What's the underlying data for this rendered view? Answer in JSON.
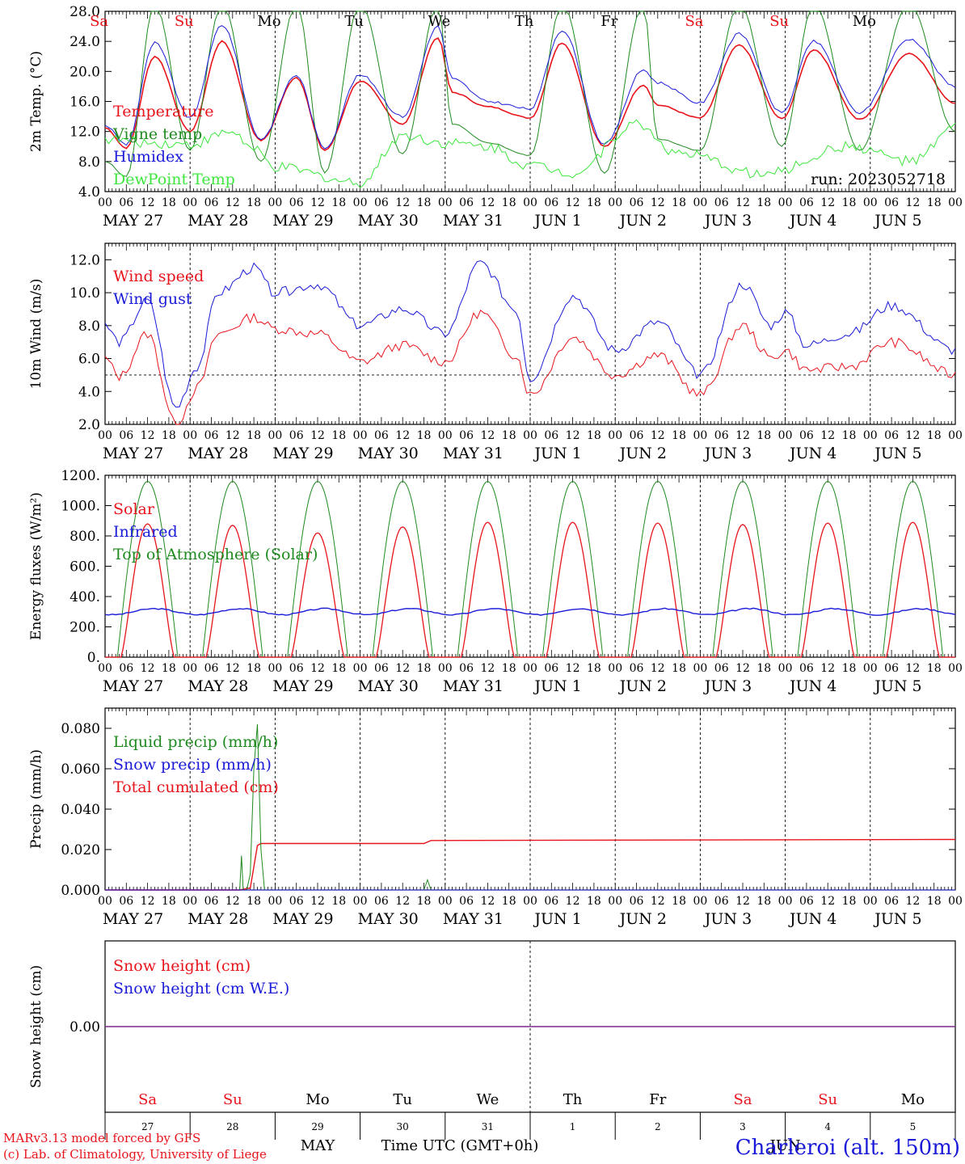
{
  "colors": {
    "red": "#e8141b",
    "blue": "#1a1ad8",
    "green": "#1f8a1f",
    "lightgreen": "#3ee63e",
    "purple": "#7a2a8a",
    "axis": "#000000"
  },
  "days": {
    "weekday_labels": [
      "Sa",
      "Su",
      "Mo",
      "Tu",
      "We",
      "Th",
      "Fr",
      "Sa",
      "Su",
      "Mo"
    ],
    "weekend_flags": [
      true,
      true,
      false,
      false,
      false,
      false,
      false,
      true,
      true,
      false
    ],
    "date_labels": [
      "MAY 27",
      "MAY 28",
      "MAY 29",
      "MAY 30",
      "MAY 31",
      "JUN  1",
      "JUN  2",
      "JUN  3",
      "JUN  4",
      "JUN  5"
    ],
    "hour_ticks": [
      "00",
      "06",
      "12",
      "18"
    ],
    "end_hour_label": "00",
    "day_numbers": [
      "27",
      "28",
      "29",
      "30",
      "31",
      "1",
      "2",
      "3",
      "4",
      "5"
    ],
    "month_labels": [
      "MAY",
      "JUN"
    ]
  },
  "footer": {
    "credit_line1": "MARv3.13 model forced by GFS",
    "credit_line2": "(c) Lab. of Climatology, University of Liege",
    "time_axis_label": "Time UTC (GMT+0h)",
    "station": "Charleroi (alt. 150m)"
  },
  "chart_data": [
    {
      "type": "line",
      "ylabel": "2m Temp. (°C)",
      "ylim": [
        4.0,
        28.0
      ],
      "yticks": [
        "4.0",
        "8.0",
        "12.0",
        "16.0",
        "20.0",
        "24.0",
        "28.0"
      ],
      "run_label": "run: 2023052718",
      "x_unit": "hours since MAY 27 00 UTC",
      "series": [
        {
          "name": "Temperature",
          "color": "red",
          "x": [
            0,
            6,
            14,
            24,
            33,
            44,
            54,
            62,
            72,
            84,
            94,
            98,
            108,
            120,
            129,
            141,
            152,
            156,
            168,
            179,
            191,
            200,
            213,
            227,
            240
          ],
          "y": [
            12.5,
            9.8,
            22.0,
            12.0,
            24.0,
            10.8,
            19.2,
            9.5,
            18.7,
            13.0,
            24.5,
            17.2,
            15.3,
            13.8,
            23.8,
            10.0,
            18.2,
            15.5,
            13.8,
            23.5,
            13.7,
            22.9,
            13.6,
            22.4,
            15.8
          ]
        },
        {
          "name": "Vigne temp",
          "color": "green",
          "x": [
            0,
            6,
            14,
            24,
            33,
            44,
            54,
            62,
            72,
            84,
            94,
            98,
            108,
            120,
            129,
            141,
            152,
            156,
            168,
            179,
            191,
            200,
            213,
            227,
            240
          ],
          "y": [
            8.0,
            6.0,
            29.0,
            9.5,
            29.0,
            8.0,
            29.0,
            6.5,
            29.0,
            9.0,
            29.0,
            13.0,
            10.5,
            8.8,
            29.0,
            6.5,
            29.0,
            11.0,
            9.5,
            29.0,
            10.0,
            29.0,
            9.5,
            29.0,
            12.0
          ]
        },
        {
          "name": "Humidex",
          "color": "blue",
          "x": [
            0,
            6,
            14,
            24,
            33,
            44,
            54,
            62,
            72,
            84,
            94,
            98,
            108,
            120,
            129,
            141,
            152,
            156,
            168,
            179,
            191,
            200,
            213,
            227,
            240
          ],
          "y": [
            12.8,
            10.3,
            23.8,
            13.8,
            26.2,
            11.0,
            19.5,
            9.8,
            19.5,
            14.0,
            26.0,
            19.0,
            16.0,
            15.0,
            25.5,
            10.3,
            20.2,
            18.5,
            15.8,
            25.0,
            14.5,
            24.0,
            14.5,
            24.3,
            18.0
          ]
        },
        {
          "name": "DewPoint Temp",
          "color": "lightgreen",
          "x": [
            0,
            12,
            24,
            36,
            42,
            48,
            72,
            84,
            96,
            108,
            120,
            132,
            150,
            162,
            186,
            210,
            228,
            240
          ],
          "y": [
            11.0,
            10.5,
            10.3,
            12.0,
            9.5,
            7.2,
            5.2,
            11.5,
            10.5,
            10.0,
            7.5,
            6.5,
            13.0,
            9.0,
            6.3,
            10.0,
            8.0,
            12.5
          ]
        }
      ]
    },
    {
      "type": "line",
      "ylabel": "10m Wind (m/s)",
      "ylim": [
        2.0,
        13.0
      ],
      "yticks": [
        "2.0",
        "4.0",
        "6.0",
        "8.0",
        "10.0",
        "12.0"
      ],
      "reference_line": 5.0,
      "x_unit": "hours since MAY 27 00 UTC",
      "series": [
        {
          "name": "Wind speed",
          "color": "red",
          "x": [
            0,
            4,
            12,
            20,
            26,
            32,
            42,
            48,
            60,
            72,
            84,
            96,
            106,
            116,
            120,
            132,
            144,
            156,
            168,
            180,
            188,
            192,
            198,
            210,
            222,
            240
          ],
          "y": [
            6.0,
            4.9,
            7.5,
            2.0,
            4.2,
            7.5,
            8.5,
            7.8,
            7.5,
            5.8,
            6.8,
            5.8,
            8.8,
            6.2,
            3.8,
            7.3,
            5.0,
            6.2,
            3.8,
            8.0,
            6.0,
            6.5,
            5.3,
            5.5,
            7.0,
            5.0
          ]
        },
        {
          "name": "Wind gust",
          "color": "blue",
          "x": [
            0,
            4,
            12,
            20,
            26,
            32,
            42,
            48,
            60,
            72,
            84,
            96,
            106,
            116,
            120,
            132,
            144,
            156,
            168,
            180,
            188,
            192,
            198,
            210,
            222,
            240
          ],
          "y": [
            8.0,
            7.0,
            9.5,
            3.0,
            5.5,
            10.0,
            11.5,
            10.0,
            10.5,
            8.0,
            9.0,
            7.5,
            11.8,
            9.0,
            4.8,
            9.8,
            6.5,
            8.2,
            5.0,
            10.5,
            8.0,
            8.8,
            6.8,
            7.5,
            9.2,
            6.5
          ]
        }
      ]
    },
    {
      "type": "line",
      "ylabel": "Energy fluxes (W/m²)",
      "ylim": [
        0,
        1200
      ],
      "yticks": [
        "0.",
        "200.",
        "400.",
        "600.",
        "800.",
        "1000.",
        "1200."
      ],
      "x_unit": "hours since MAY 27 00 UTC",
      "solar_peaks": [
        880,
        870,
        820,
        860,
        890,
        890,
        885,
        875,
        885,
        890
      ],
      "toa_peak": 1160,
      "infrared_range": [
        270,
        340
      ],
      "series_names": [
        {
          "name": "Solar",
          "color": "red"
        },
        {
          "name": "Infrared",
          "color": "blue"
        },
        {
          "name": "Top of Atmosphere (Solar)",
          "color": "green"
        }
      ]
    },
    {
      "type": "line",
      "ylabel": "Precip (mm/h)",
      "ylim": [
        0.0,
        0.09
      ],
      "yticks": [
        "0.000",
        "0.020",
        "0.040",
        "0.060",
        "0.080"
      ],
      "x_unit": "hours since MAY 27 00 UTC",
      "series": [
        {
          "name": "Liquid precip (mm/h)",
          "color": "green",
          "x": [
            0,
            38,
            38.5,
            39,
            40,
            41,
            42,
            43,
            44,
            45,
            90,
            91,
            92,
            240
          ],
          "y": [
            0,
            0,
            0.017,
            0,
            0,
            0.008,
            0.06,
            0.082,
            0.02,
            0,
            0,
            0.005,
            0,
            0
          ]
        },
        {
          "name": "Snow precip (mm/h)",
          "color": "blue",
          "x": [
            0,
            240
          ],
          "y": [
            0,
            0
          ]
        },
        {
          "name": "Total cumulated (cm)",
          "color": "red",
          "x": [
            0,
            38,
            41,
            43,
            44,
            90,
            92,
            240
          ],
          "y": [
            0,
            0,
            0.001,
            0.022,
            0.023,
            0.023,
            0.0245,
            0.025
          ]
        }
      ]
    },
    {
      "type": "line",
      "ylabel": "Snow height (cm)",
      "ylim": [
        -0.5,
        0.5
      ],
      "yticks": [
        "0.00"
      ],
      "x_unit": "hours since MAY 27 00 UTC",
      "series": [
        {
          "name": "Snow height (cm)",
          "color": "red",
          "x": [
            0,
            240
          ],
          "y": [
            0,
            0
          ]
        },
        {
          "name": "Snow height (cm W.E.)",
          "color": "blue",
          "x": [
            0,
            240
          ],
          "y": [
            0,
            0
          ]
        }
      ]
    }
  ]
}
